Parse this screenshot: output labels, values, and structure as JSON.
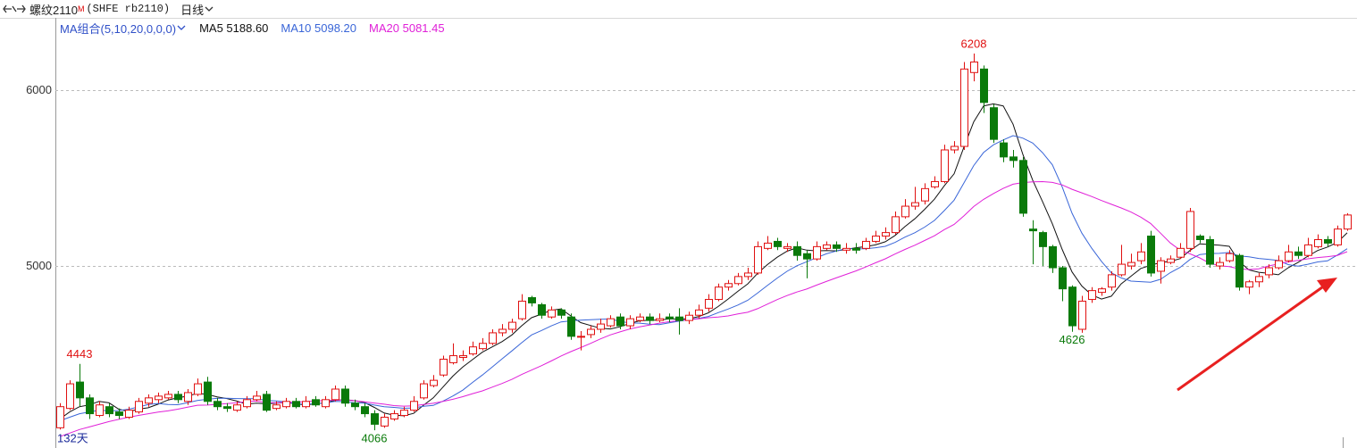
{
  "header": {
    "name": "螺纹2110",
    "badge": "M",
    "code": "(SHFE rb2110)",
    "period": "日线"
  },
  "chart_data": {
    "type": "candlestick",
    "ma_title": "MA组合(5,10,20,0,0,0)",
    "period_label": "132天",
    "up_color": "#e01010",
    "down_color": "#0a7a0a",
    "ylim": [
      3965,
      6411
    ],
    "yticks": [
      5000,
      6000
    ],
    "grid": true,
    "extreme_labels": [
      4443,
      4066,
      6208,
      4626
    ],
    "open": [
      4080,
      4190,
      4340,
      4250,
      4150,
      4200,
      4170,
      4140,
      4170,
      4220,
      4240,
      4250,
      4270,
      4230,
      4270,
      4340,
      4230,
      4200,
      4180,
      4200,
      4240,
      4270,
      4190,
      4200,
      4230,
      4200,
      4240,
      4200,
      4240,
      4300,
      4220,
      4200,
      4160,
      4090,
      4130,
      4150,
      4180,
      4250,
      4320,
      4380,
      4450,
      4480,
      4500,
      4530,
      4560,
      4620,
      4640,
      4700,
      4820,
      4780,
      4710,
      4750,
      4710,
      4600,
      4610,
      4640,
      4660,
      4710,
      4660,
      4690,
      4710,
      4690,
      4710,
      4710,
      4690,
      4720,
      4760,
      4810,
      4880,
      4900,
      4940,
      4960,
      5100,
      5140,
      5100,
      5110,
      5070,
      5040,
      5100,
      5120,
      5090,
      5100,
      5100,
      5140,
      5170,
      5190,
      5280,
      5340,
      5370,
      5450,
      5480,
      5660,
      5680,
      6100,
      6120,
      5900,
      5700,
      5620,
      5600,
      5210,
      5190,
      5110,
      4990,
      4880,
      4640,
      4810,
      4850,
      4880,
      4950,
      5000,
      5030,
      5170,
      4970,
      5020,
      5050,
      5100,
      5170,
      5150,
      5000,
      5030,
      5060,
      4880,
      4910,
      4950,
      4990,
      5030,
      5080,
      5060,
      5110,
      5150,
      5120,
      5210
    ],
    "high": [
      4220,
      4350,
      4443,
      4270,
      4230,
      4220,
      4190,
      4200,
      4250,
      4270,
      4280,
      4290,
      4290,
      4300,
      4360,
      4370,
      4250,
      4220,
      4230,
      4260,
      4290,
      4290,
      4230,
      4250,
      4250,
      4260,
      4260,
      4260,
      4320,
      4320,
      4240,
      4220,
      4180,
      4160,
      4180,
      4200,
      4260,
      4350,
      4380,
      4490,
      4560,
      4520,
      4570,
      4590,
      4640,
      4670,
      4700,
      4840,
      4830,
      4790,
      4770,
      4760,
      4730,
      4630,
      4660,
      4700,
      4720,
      4730,
      4720,
      4730,
      4730,
      4730,
      4730,
      4760,
      4740,
      4780,
      4840,
      4900,
      4920,
      4960,
      4990,
      5140,
      5170,
      5160,
      5130,
      5140,
      5090,
      5140,
      5140,
      5140,
      5130,
      5130,
      5160,
      5200,
      5220,
      5310,
      5380,
      5450,
      5470,
      5510,
      5690,
      5710,
      6160,
      6208,
      6140,
      5920,
      5720,
      5660,
      5620,
      5260,
      5200,
      5120,
      5000,
      4890,
      4830,
      4880,
      4880,
      4970,
      5120,
      5070,
      5130,
      5200,
      5050,
      5060,
      5130,
      5330,
      5180,
      5170,
      5050,
      5090,
      5070,
      4920,
      4960,
      5010,
      5060,
      5120,
      5110,
      5160,
      5180,
      5170,
      5230,
      5300
    ],
    "low": [
      4070,
      4180,
      4200,
      4130,
      4140,
      4140,
      4130,
      4130,
      4160,
      4200,
      4220,
      4240,
      4220,
      4210,
      4260,
      4210,
      4180,
      4170,
      4170,
      4190,
      4230,
      4170,
      4180,
      4190,
      4190,
      4190,
      4200,
      4190,
      4230,
      4200,
      4180,
      4140,
      4066,
      4080,
      4120,
      4140,
      4170,
      4240,
      4310,
      4370,
      4440,
      4460,
      4490,
      4520,
      4550,
      4600,
      4620,
      4690,
      4770,
      4700,
      4700,
      4700,
      4580,
      4520,
      4590,
      4620,
      4650,
      4640,
      4640,
      4680,
      4670,
      4680,
      4680,
      4610,
      4670,
      4700,
      4740,
      4800,
      4860,
      4890,
      4920,
      4950,
      5090,
      5090,
      5080,
      5030,
      4930,
      5030,
      5090,
      5080,
      5070,
      5070,
      5090,
      5130,
      5150,
      5180,
      5270,
      5320,
      5350,
      5440,
      5470,
      5640,
      5660,
      6050,
      5870,
      5700,
      5590,
      5560,
      5280,
      5010,
      5000,
      4960,
      4800,
      4626,
      4620,
      4790,
      4830,
      4860,
      4940,
      4980,
      5010,
      4940,
      4900,
      5010,
      5040,
      5080,
      5130,
      4990,
      4980,
      5020,
      4860,
      4840,
      4880,
      4930,
      4980,
      5020,
      5040,
      5050,
      5100,
      5110,
      5110,
      5200
    ],
    "close": [
      4200,
      4330,
      4250,
      4160,
      4210,
      4160,
      4150,
      4180,
      4230,
      4250,
      4260,
      4270,
      4240,
      4280,
      4330,
      4230,
      4200,
      4190,
      4210,
      4240,
      4260,
      4180,
      4210,
      4230,
      4200,
      4230,
      4210,
      4240,
      4300,
      4220,
      4200,
      4160,
      4100,
      4140,
      4160,
      4180,
      4230,
      4330,
      4350,
      4470,
      4490,
      4490,
      4540,
      4560,
      4620,
      4640,
      4680,
      4800,
      4790,
      4720,
      4750,
      4720,
      4600,
      4600,
      4640,
      4670,
      4700,
      4660,
      4700,
      4710,
      4690,
      4700,
      4700,
      4690,
      4720,
      4750,
      4810,
      4880,
      4900,
      4940,
      4960,
      5110,
      5130,
      5110,
      5110,
      5060,
      5040,
      5110,
      5120,
      5100,
      5100,
      5090,
      5140,
      5170,
      5190,
      5280,
      5340,
      5360,
      5440,
      5480,
      5660,
      5680,
      6120,
      6160,
      5930,
      5720,
      5620,
      5600,
      5300,
      5200,
      5110,
      4990,
      4870,
      4660,
      4800,
      4860,
      4870,
      4950,
      5010,
      5020,
      5080,
      4960,
      5030,
      5040,
      5100,
      5310,
      5150,
      5010,
      5020,
      5070,
      4880,
      4910,
      4940,
      4990,
      5030,
      5080,
      5060,
      5120,
      5150,
      5130,
      5210,
      5290
    ],
    "series": [
      {
        "name": "MA5",
        "legend_value": "5188.60",
        "color": "#111111",
        "values": [
          4130,
          4170,
          4200,
          4210,
          4230,
          4222,
          4186,
          4172,
          4186,
          4194,
          4214,
          4238,
          4250,
          4260,
          4276,
          4270,
          4256,
          4246,
          4232,
          4214,
          4220,
          4216,
          4220,
          4224,
          4216,
          4210,
          4216,
          4222,
          4236,
          4240,
          4234,
          4224,
          4196,
          4164,
          4152,
          4148,
          4162,
          4208,
          4250,
          4312,
          4374,
          4426,
          4468,
          4510,
          4540,
          4570,
          4608,
          4660,
          4706,
          4726,
          4748,
          4756,
          4716,
          4678,
          4662,
          4646,
          4642,
          4654,
          4674,
          4688,
          4692,
          4692,
          4700,
          4698,
          4700,
          4712,
          4734,
          4770,
          4812,
          4856,
          4898,
          4958,
          5008,
          5050,
          5084,
          5104,
          5090,
          5086,
          5088,
          5086,
          5094,
          5104,
          5110,
          5120,
          5138,
          5174,
          5224,
          5268,
          5322,
          5380,
          5456,
          5524,
          5676,
          5820,
          5910,
          5922,
          5910,
          5806,
          5634,
          5488,
          5366,
          5240,
          5094,
          4966,
          4886,
          4836,
          4812,
          4828,
          4898,
          4942,
          4986,
          5004,
          5020,
          5026,
          5042,
          5088,
          5126,
          5122,
          5118,
          5112,
          5026,
          4978,
          4964,
          4958,
          4950,
          4990,
          5020,
          5056,
          5088,
          5108,
          5134,
          5188.6
        ]
      },
      {
        "name": "MA10",
        "legend_value": "5098.20",
        "color": "#3a66d8",
        "values": [
          4120,
          4140,
          4160,
          4170,
          4180,
          4176,
          4178,
          4186,
          4198,
          4212,
          4218,
          4212,
          4211,
          4223,
          4235,
          4242,
          4247,
          4248,
          4246,
          4245,
          4245,
          4236,
          4233,
          4228,
          4215,
          4215,
          4216,
          4221,
          4230,
          4228,
          4222,
          4220,
          4209,
          4200,
          4196,
          4191,
          4193,
          4202,
          4207,
          4232,
          4261,
          4294,
          4338,
          4380,
          4426,
          4472,
          4517,
          4564,
          4608,
          4633,
          4659,
          4682,
          4688,
          4692,
          4694,
          4697,
          4699,
          4685,
          4676,
          4675,
          4669,
          4667,
          4677,
          4686,
          4694,
          4702,
          4713,
          4735,
          4755,
          4778,
          4805,
          4846,
          4889,
          4931,
          4970,
          5001,
          5024,
          5047,
          5069,
          5085,
          5099,
          5097,
          5098,
          5104,
          5112,
          5134,
          5164,
          5189,
          5221,
          5259,
          5315,
          5374,
          5472,
          5571,
          5645,
          5689,
          5717,
          5741,
          5727,
          5699,
          5644,
          5575,
          5450,
          5300,
          5187,
          5101,
          5026,
          4961,
          4932,
          4914,
          4911,
          4908,
          4924,
          4962,
          4992,
          5037,
          5065,
          5071,
          5072,
          5077,
          5057,
          5052,
          5043,
          5038,
          5031,
          5008,
          4999,
          5010,
          5023,
          5029,
          5062,
          5098.2
        ]
      },
      {
        "name": "MA20",
        "legend_value": "5081.45",
        "color": "#e020d8",
        "values": [
          4030,
          4050,
          4070,
          4085,
          4100,
          4115,
          4128,
          4140,
          4150,
          4160,
          4169,
          4176,
          4186,
          4197,
          4208,
          4209,
          4213,
          4217,
          4222,
          4229,
          4232,
          4224,
          4222,
          4226,
          4225,
          4229,
          4232,
          4235,
          4238,
          4237,
          4234,
          4228,
          4221,
          4214,
          4206,
          4203,
          4205,
          4212,
          4219,
          4230,
          4242,
          4257,
          4274,
          4290,
          4311,
          4332,
          4355,
          4383,
          4408,
          4433,
          4460,
          4488,
          4513,
          4536,
          4560,
          4585,
          4608,
          4625,
          4642,
          4654,
          4664,
          4675,
          4683,
          4689,
          4694,
          4700,
          4706,
          4710,
          4716,
          4727,
          4737,
          4757,
          4783,
          4809,
          4832,
          4852,
          4869,
          4891,
          4912,
          4932,
          4952,
          4972,
          4994,
          5018,
          5041,
          5068,
          5094,
          5118,
          5145,
          5172,
          5207,
          5236,
          5285,
          5338,
          5379,
          5412,
          5441,
          5465,
          5474,
          5479,
          5480,
          5475,
          5461,
          5436,
          5416,
          5395,
          5372,
          5351,
          5330,
          5307,
          5278,
          5242,
          5187,
          5131,
          5090,
          5069,
          5046,
          5016,
          5002,
          4996,
          4984,
          4980,
          4984,
          5000,
          5012,
          5023,
          5032,
          5041,
          5048,
          5053,
          5060,
          5081.45
        ]
      }
    ]
  }
}
